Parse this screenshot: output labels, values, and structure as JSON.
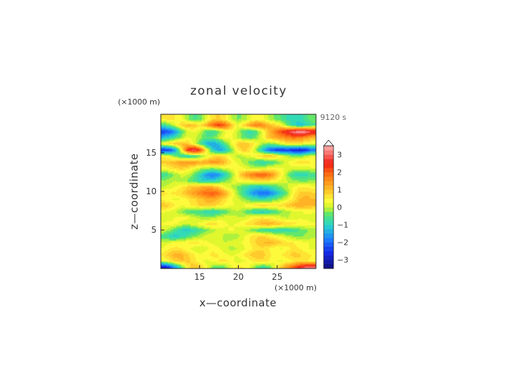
{
  "chart_data": {
    "type": "heatmap",
    "title": "zonal velocity",
    "xlabel": "x—coordinate",
    "ylabel": "z—coordinate",
    "x_unit": "(×1000 m)",
    "y_unit": "(×1000 m)",
    "time_label": "9120 s",
    "xlim": [
      10,
      30
    ],
    "ylim": [
      0,
      20
    ],
    "x_ticks": [
      "15",
      "20",
      "25"
    ],
    "y_ticks": [
      "5",
      "10",
      "15"
    ],
    "colorbar": {
      "range": [
        -3.5,
        3.5
      ],
      "step": 0.25,
      "tick_values": [
        3,
        2,
        1,
        0,
        -1,
        -2,
        -3
      ],
      "tick_labels": [
        "3",
        "2",
        "1",
        "0",
        "−1",
        "−2",
        "−3"
      ],
      "extend_max": true
    },
    "z_rows": {
      "z": [
        0.2,
        1.0,
        1.8,
        2.6,
        3.4,
        4.2,
        5.0,
        5.8,
        6.6,
        7.4,
        8.2,
        9.0,
        9.8,
        10.6,
        11.4,
        12.2,
        13.0,
        13.8,
        14.6,
        15.4,
        16.2,
        17.0,
        17.8,
        18.6,
        19.4
      ],
      "x": [
        10.3,
        11.1,
        11.9,
        12.7,
        13.5,
        14.3,
        15.1,
        15.9,
        16.7,
        17.5,
        18.3,
        19.1,
        19.9,
        20.7,
        21.5,
        22.3,
        23.1,
        23.9,
        24.7,
        25.5,
        26.3,
        27.1,
        27.9,
        28.7,
        29.5
      ],
      "values": [
        [
          -3.0,
          -2.5,
          -1.5,
          -0.5,
          0.5,
          1.0,
          0.8,
          0.3,
          -0.3,
          -0.5,
          -0.3,
          0.2,
          0.6,
          0.5,
          0.2,
          -0.4,
          -0.8,
          -0.5,
          0.2,
          0.9,
          1.5,
          2.0,
          2.6,
          3.1,
          3.2
        ],
        [
          0.2,
          0.5,
          0.8,
          1.0,
          0.9,
          0.6,
          0.3,
          0.2,
          0.3,
          0.5,
          0.6,
          0.4,
          0.1,
          0.2,
          0.4,
          0.6,
          0.7,
          0.5,
          0.3,
          0.2,
          0.3,
          0.5,
          0.7,
          0.6,
          0.4
        ],
        [
          0.6,
          0.9,
          1.2,
          1.1,
          0.8,
          0.5,
          0.3,
          0.4,
          0.6,
          0.5,
          0.3,
          0.2,
          0.3,
          0.5,
          0.8,
          1.0,
          0.9,
          0.6,
          0.4,
          0.5,
          0.7,
          0.9,
          0.8,
          0.6,
          0.5
        ],
        [
          0.3,
          0.5,
          0.6,
          0.5,
          0.3,
          0.1,
          0.0,
          0.2,
          0.4,
          0.3,
          0.1,
          -0.1,
          0.0,
          0.2,
          0.4,
          0.6,
          0.7,
          0.5,
          0.3,
          0.2,
          0.4,
          0.6,
          0.5,
          0.3,
          0.2
        ],
        [
          0.1,
          0.2,
          0.3,
          0.4,
          0.5,
          0.6,
          0.5,
          0.3,
          0.2,
          0.1,
          0.0,
          0.1,
          0.2,
          0.3,
          0.5,
          0.8,
          1.0,
          1.1,
          1.0,
          0.8,
          0.6,
          0.5,
          0.4,
          0.3,
          0.2
        ],
        [
          -0.6,
          -0.9,
          -1.1,
          -0.9,
          -0.6,
          -0.3,
          -0.1,
          0.1,
          0.2,
          0.1,
          -0.1,
          -0.2,
          -0.1,
          0.2,
          0.5,
          0.7,
          0.8,
          0.6,
          0.4,
          0.2,
          0.0,
          -0.2,
          -0.3,
          -0.2,
          -0.1
        ],
        [
          0.1,
          -0.2,
          -0.6,
          -1.0,
          -1.1,
          -0.9,
          -0.6,
          -0.3,
          -0.1,
          0.1,
          0.2,
          0.3,
          0.2,
          0.0,
          -0.2,
          -0.5,
          -0.7,
          -0.8,
          -0.9,
          -1.0,
          -0.9,
          -0.7,
          -0.5,
          -0.3,
          -0.1
        ],
        [
          0.3,
          0.4,
          0.3,
          0.1,
          0.0,
          0.2,
          0.4,
          0.6,
          0.7,
          0.5,
          0.3,
          0.2,
          0.3,
          0.5,
          0.7,
          0.9,
          1.1,
          1.2,
          1.1,
          0.9,
          0.7,
          0.6,
          0.5,
          0.4,
          0.3
        ],
        [
          0.0,
          0.1,
          0.3,
          0.4,
          0.3,
          0.1,
          -0.1,
          -0.2,
          -0.1,
          0.1,
          0.2,
          0.1,
          0.0,
          0.1,
          0.3,
          0.5,
          0.6,
          0.5,
          0.3,
          0.1,
          0.0,
          0.1,
          0.2,
          0.2,
          0.1
        ],
        [
          0.3,
          0.2,
          0.0,
          -0.3,
          -0.5,
          -0.6,
          -0.7,
          -0.9,
          -1.0,
          -0.8,
          -0.5,
          -0.2,
          0.0,
          -0.3,
          -0.7,
          -1.0,
          -1.1,
          -0.9,
          -0.6,
          -0.3,
          -0.1,
          0.1,
          0.2,
          0.3,
          0.3
        ],
        [
          1.0,
          0.8,
          0.5,
          0.3,
          0.4,
          0.6,
          0.8,
          0.9,
          0.8,
          0.6,
          0.4,
          0.3,
          0.2,
          0.3,
          0.5,
          0.7,
          0.8,
          0.7,
          0.6,
          0.7,
          0.9,
          1.1,
          1.2,
          1.1,
          1.0
        ],
        [
          0.4,
          0.3,
          0.2,
          0.3,
          0.5,
          0.7,
          0.9,
          1.1,
          1.2,
          1.0,
          0.6,
          0.3,
          0.1,
          -0.2,
          -0.5,
          -0.7,
          -0.8,
          -0.7,
          -0.4,
          -0.1,
          0.2,
          0.6,
          1.0,
          1.2,
          1.0
        ],
        [
          0.6,
          0.5,
          0.6,
          0.8,
          1.1,
          1.4,
          1.7,
          2.0,
          2.1,
          1.8,
          1.2,
          0.5,
          -0.2,
          -0.8,
          -1.4,
          -1.8,
          -2.0,
          -1.9,
          -1.5,
          -0.9,
          -0.3,
          0.4,
          0.8,
          0.9,
          0.8
        ],
        [
          0.0,
          0.1,
          0.3,
          0.5,
          0.8,
          1.0,
          1.1,
          1.2,
          1.1,
          0.8,
          0.3,
          0.0,
          -0.3,
          -0.6,
          -0.9,
          -1.1,
          -1.1,
          -0.9,
          -0.6,
          -0.3,
          0.0,
          0.3,
          0.5,
          0.5,
          0.4
        ],
        [
          -0.2,
          -0.1,
          0.0,
          -0.1,
          -0.3,
          -0.6,
          -0.9,
          -1.1,
          -1.0,
          -0.7,
          -0.3,
          0.0,
          0.3,
          0.4,
          0.5,
          0.6,
          0.7,
          0.6,
          0.4,
          0.2,
          0.0,
          -0.2,
          -0.3,
          -0.3,
          -0.2
        ],
        [
          -0.8,
          -0.5,
          -0.2,
          0.1,
          0.0,
          -0.4,
          -1.0,
          -1.6,
          -1.9,
          -1.6,
          -1.0,
          -0.3,
          0.5,
          1.2,
          1.7,
          2.0,
          2.1,
          1.8,
          1.2,
          0.5,
          -0.2,
          -0.8,
          -1.0,
          -0.9,
          -0.7
        ],
        [
          0.3,
          0.5,
          0.7,
          0.8,
          0.6,
          0.3,
          0.0,
          -0.2,
          -0.3,
          -0.1,
          0.1,
          0.3,
          0.4,
          0.3,
          0.1,
          0.0,
          0.1,
          0.3,
          0.4,
          0.3,
          0.2,
          0.1,
          0.0,
          0.1,
          0.2
        ],
        [
          0.8,
          1.0,
          1.2,
          1.4,
          1.5,
          1.4,
          1.2,
          1.3,
          1.5,
          1.4,
          1.0,
          0.5,
          0.2,
          -0.1,
          -0.4,
          -0.7,
          -0.9,
          -0.8,
          -0.5,
          -0.2,
          0.2,
          0.5,
          0.7,
          0.6,
          0.5
        ],
        [
          0.5,
          0.2,
          -0.3,
          -0.8,
          -1.0,
          -0.8,
          -0.4,
          0.2,
          0.6,
          0.8,
          0.6,
          0.2,
          -0.1,
          0.0,
          0.2,
          0.5,
          0.8,
          1.0,
          0.8,
          0.4,
          0.0,
          -0.3,
          -0.3,
          0.0,
          0.3
        ],
        [
          -2.6,
          -2.4,
          -1.5,
          0.5,
          2.5,
          3.2,
          2.2,
          0.4,
          -1.0,
          -1.5,
          -1.2,
          -0.4,
          0.5,
          0.9,
          0.6,
          -0.2,
          -1.2,
          -2.0,
          -2.4,
          -2.6,
          -2.5,
          -2.7,
          -2.9,
          -2.6,
          -2.0
        ],
        [
          0.4,
          0.7,
          1.0,
          1.1,
          0.8,
          0.2,
          -0.6,
          -1.3,
          -1.6,
          -1.2,
          -0.5,
          0.2,
          0.8,
          1.0,
          0.8,
          0.4,
          -0.1,
          -0.4,
          -0.2,
          0.2,
          0.5,
          0.6,
          0.5,
          0.3,
          0.2
        ],
        [
          -1.3,
          -1.0,
          -0.6,
          -0.1,
          0.3,
          0.1,
          -0.2,
          -0.5,
          -0.4,
          0.0,
          0.4,
          0.3,
          0.0,
          -0.4,
          -0.6,
          -0.3,
          0.3,
          0.9,
          1.2,
          1.4,
          1.6,
          1.8,
          1.7,
          1.4,
          1.1
        ],
        [
          -2.4,
          -2.2,
          -1.6,
          -0.6,
          0.1,
          0.3,
          0.0,
          -0.6,
          -0.8,
          -0.4,
          0.2,
          0.4,
          0.0,
          -0.6,
          -0.9,
          -0.6,
          0.2,
          1.0,
          1.6,
          2.2,
          2.7,
          3.2,
          3.6,
          3.4,
          2.8
        ],
        [
          -0.8,
          -0.4,
          0.2,
          0.8,
          1.1,
          1.0,
          0.6,
          1.2,
          2.0,
          2.4,
          2.0,
          1.0,
          0.2,
          0.8,
          1.4,
          1.8,
          1.6,
          1.1,
          0.8,
          0.4,
          -0.3,
          -0.9,
          -1.2,
          -1.0,
          -0.6
        ],
        [
          0.5,
          0.6,
          0.5,
          0.3,
          -0.2,
          -0.6,
          -0.4,
          0.2,
          0.7,
          0.8,
          0.5,
          0.0,
          -0.3,
          -0.2,
          0.2,
          0.4,
          0.3,
          0.0,
          -0.3,
          -0.5,
          -0.8,
          -1.0,
          -0.9,
          -0.6,
          -0.3
        ]
      ]
    }
  }
}
